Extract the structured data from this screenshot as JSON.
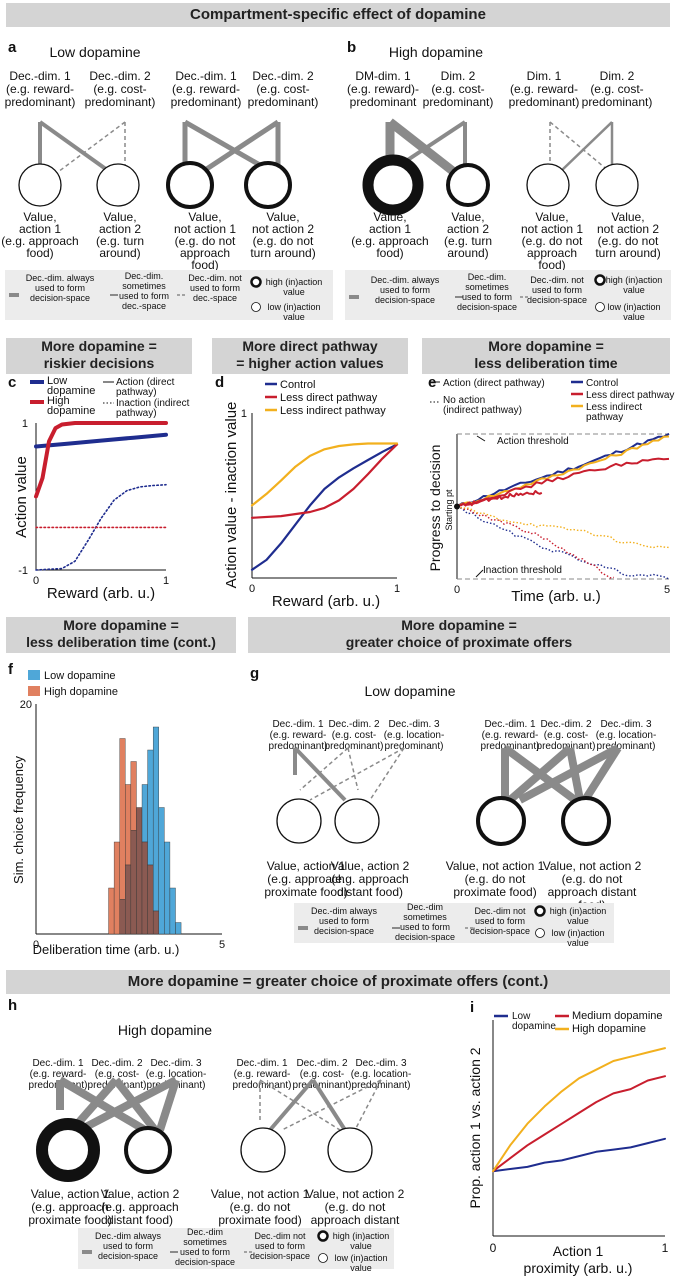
{
  "header": {
    "title": "Compartment-specific effect of dopamine",
    "cont_title": "More dopamine = greater choice of proximate offers (cont.)"
  },
  "sections": {
    "c1": "More dopamine =",
    "c2": "riskier decisions",
    "d1": "More direct pathway",
    "d2": "= higher action values",
    "e1": "More dopamine =",
    "e2": "less deliberation time",
    "f1": "More dopamine =",
    "f2": "less deliberation time (cont.)",
    "g1": "More dopamine =",
    "g2": "greater choice of proximate offers"
  },
  "labels": {
    "a": "a",
    "b": "b",
    "c": "c",
    "d": "d",
    "e": "e",
    "f": "f",
    "g": "g",
    "h": "h",
    "i": "i"
  },
  "panel_a": {
    "title": "Low dopamine",
    "dims": [
      [
        "Dec.-dim. 1",
        "(e.g. reward-",
        "predominant)"
      ],
      [
        "Dec.-dim. 2",
        "(e.g. cost-",
        "predominant)"
      ],
      [
        "Dec.-dim. 1",
        "(e.g. reward-",
        "predominant)"
      ],
      [
        "Dec.-dim. 2",
        "(e.g. cost-",
        "predominant)"
      ]
    ],
    "values": [
      [
        "Value,",
        "action 1",
        "(e.g. approach",
        "food)"
      ],
      [
        "Value,",
        "action 2",
        "(e.g. turn",
        "around)"
      ],
      [
        "Value,",
        "not action 1",
        "(e.g. do not",
        "approach",
        "food)"
      ],
      [
        "Value,",
        "not action 2",
        "(e.g. do not",
        "turn around)"
      ]
    ],
    "legend": {
      "always": [
        "Dec.-dim. always",
        "used to form",
        "decision-space"
      ],
      "sometimes": [
        "Dec.-dim.",
        "sometimes",
        "used to form",
        "dec.-space"
      ],
      "not": [
        "Dec.-dim. not",
        "used to form",
        "dec.-space"
      ],
      "high": [
        "high (in)action",
        "value"
      ],
      "low": [
        "low (in)action",
        "value"
      ]
    }
  },
  "panel_b": {
    "title": "High dopamine",
    "dims": [
      [
        "DM-dim. 1",
        "(e.g. reward)-",
        "predominant"
      ],
      [
        "Dim. 2",
        "(e.g. cost-",
        "predominant)"
      ],
      [
        "Dim. 1",
        "(e.g. reward-",
        "predominant)"
      ],
      [
        "Dim. 2",
        "(e.g. cost-",
        "predominant)"
      ]
    ],
    "values": [
      [
        "Value,",
        "action 1",
        "(e.g. approach",
        "food)"
      ],
      [
        "Value,",
        "action 2",
        "(e.g. turn",
        "around)"
      ],
      [
        "Value,",
        "not action 1",
        "(e.g. do not",
        "approach",
        "food)"
      ],
      [
        "Value,",
        "not action 2",
        "(e.g. do not",
        "turn around)"
      ]
    ],
    "legend": {
      "always": [
        "Dec.-dim. always",
        "used to form",
        "decision-space"
      ],
      "sometimes": [
        "Dec.-dim.",
        "sometimes",
        "used to form",
        "decision-space"
      ],
      "not": [
        "Dec.-dim. not",
        "used to form",
        "decision-space"
      ],
      "high": [
        "high (in)action",
        "value"
      ],
      "low": [
        "low (in)action",
        "value"
      ]
    }
  },
  "panel_g": {
    "title": "Low dopamine",
    "dims": [
      [
        "Dec.-dim. 1",
        "(e.g. reward-",
        "predominant)"
      ],
      [
        "Dec.-dim. 2",
        "(e.g. cost-",
        "predominant)"
      ],
      [
        "Dec.-dim. 3",
        "(e.g. location-",
        "predominant)"
      ],
      [
        "Dec.-dim. 1",
        "(e.g. reward-",
        "predominant)"
      ],
      [
        "Dec.-dim. 2",
        "(e.g. cost-",
        "predominant)"
      ],
      [
        "Dec.-dim. 3",
        "(e.g. location-",
        "predominant)"
      ]
    ],
    "values": [
      [
        "Value, action 1",
        "(e.g. approach",
        "proximate food)"
      ],
      [
        "Value, action 2",
        "(e.g. approach",
        "distant food)"
      ],
      [
        "Value, not action 1",
        "(e.g. do not",
        "proximate food)"
      ],
      [
        "Value, not action 2",
        "(e.g. do not",
        "approach distant",
        "food)"
      ]
    ],
    "legend": {
      "always": [
        "Dec.-dim always",
        "used to form",
        "decision-space"
      ],
      "sometimes": [
        "Dec.-dim",
        "sometimes",
        "used to form",
        "decision-space"
      ],
      "not": [
        "Dec.-dim not",
        "used to form",
        "decision-space"
      ],
      "high": [
        "high (in)action",
        "value"
      ],
      "low": [
        "low (in)action",
        "value"
      ]
    }
  },
  "panel_h": {
    "title": "High dopamine",
    "dims": [
      [
        "Dec.-dim. 1",
        "(e.g. reward-",
        "predominant)"
      ],
      [
        "Dec.-dim. 2",
        "(e.g. cost-",
        "predominant)"
      ],
      [
        "Dec.-dim. 3",
        "(e.g. location-",
        "predominant)"
      ],
      [
        "Dec.-dim. 1",
        "(e.g. reward-",
        "predominant)"
      ],
      [
        "Dec.-dim. 2",
        "(e.g. cost-",
        "predominant)"
      ],
      [
        "Dec.-dim. 3",
        "(e.g. location-",
        "predominant)"
      ]
    ],
    "values": [
      [
        "Value, action 1",
        "(e.g. approach",
        "proximate food)"
      ],
      [
        "Value, action 2",
        "(e.g. approach",
        "distant food)"
      ],
      [
        "Value, not action 1",
        "(e.g. do not",
        "proximate food)"
      ],
      [
        "Value, not action 2",
        "(e.g. do not",
        "approach distant",
        "food)"
      ]
    ],
    "legend": {
      "always": [
        "Dec.-dim always",
        "used to form",
        "decision-space"
      ],
      "sometimes": [
        "Dec.-dim",
        "sometimes",
        "used to form",
        "decision-space"
      ],
      "not": [
        "Dec.-dim not",
        "used to form",
        "decision-space"
      ],
      "high": [
        "high (in)action",
        "value"
      ],
      "low": [
        "low (in)action",
        "value"
      ]
    }
  },
  "colors": {
    "blue": "#1f2d8f",
    "red": "#c81e2e",
    "yellow": "#f2b01e",
    "gray": "#8a8a8a",
    "legend_bg": "#ececec",
    "hist_blue": "#4fa7d8",
    "hist_red": "#e08060",
    "hist_overlap": "#8b5a52"
  },
  "chart_data": [
    {
      "id": "c",
      "type": "line",
      "xlabel": "Reward (arb. u.)",
      "ylabel": "Action value",
      "xlim": [
        0,
        1
      ],
      "ylim": [
        -1,
        1
      ],
      "xticks": [
        "0",
        "1"
      ],
      "yticks": [
        "1",
        "-1"
      ],
      "legend": [
        {
          "name": "Low dopamine",
          "label": [
            "Low",
            "dopamine"
          ],
          "color": "#1f2d8f"
        },
        {
          "name": "High dopamine",
          "label": [
            "High",
            "dopamine"
          ],
          "color": "#c81e2e"
        },
        {
          "name": "Action (direct pathway)",
          "label": [
            "Action (direct",
            "pathway)"
          ],
          "style": "solid"
        },
        {
          "name": "Inaction (indirect pathway)",
          "label": [
            "Inaction (indirect",
            "pathway)"
          ],
          "style": "dotted"
        }
      ],
      "series": [
        {
          "name": "Low dopamine action",
          "style": "solid",
          "color": "#1f2d8f",
          "x": [
            0,
            0.25,
            0.5,
            0.75,
            1
          ],
          "y": [
            0.68,
            0.72,
            0.76,
            0.8,
            0.84
          ]
        },
        {
          "name": "High dopamine action",
          "style": "solid",
          "color": "#c81e2e",
          "x": [
            0,
            0.05,
            0.1,
            0.15,
            0.2,
            0.3,
            0.5,
            1
          ],
          "y": [
            0.0,
            0.25,
            0.75,
            0.93,
            0.98,
            1.0,
            1.0,
            1.0
          ]
        },
        {
          "name": "Low dopamine inaction",
          "style": "dotted",
          "color": "#1f2d8f",
          "x": [
            0,
            0.2,
            0.3,
            0.4,
            0.5,
            0.6,
            0.7,
            0.8,
            0.9,
            1
          ],
          "y": [
            -1.0,
            -0.98,
            -0.88,
            -0.6,
            -0.3,
            -0.05,
            0.08,
            0.13,
            0.15,
            0.16
          ]
        },
        {
          "name": "High dopamine inaction",
          "style": "dotted",
          "color": "#c81e2e",
          "x": [
            0,
            1
          ],
          "y": [
            -0.42,
            -0.42
          ]
        }
      ]
    },
    {
      "id": "d",
      "type": "line",
      "xlabel": "Reward (arb. u.)",
      "ylabel": "Action value - inaction value",
      "xlim": [
        0,
        1
      ],
      "ylim": [
        -1,
        1
      ],
      "xticks": [
        "0",
        "1"
      ],
      "yticks": [
        "1"
      ],
      "legend": [
        {
          "name": "Control",
          "color": "#1f2d8f"
        },
        {
          "name": "Less direct pathway",
          "color": "#c81e2e"
        },
        {
          "name": "Less indirect pathway",
          "color": "#f2b01e"
        }
      ],
      "series": [
        {
          "name": "Control",
          "color": "#1f2d8f",
          "x": [
            0,
            0.1,
            0.2,
            0.3,
            0.4,
            0.5,
            0.6,
            0.7,
            0.8,
            0.9,
            1
          ],
          "y": [
            -0.9,
            -0.78,
            -0.58,
            -0.35,
            -0.12,
            0.08,
            0.22,
            0.33,
            0.43,
            0.53,
            0.62
          ]
        },
        {
          "name": "Less direct pathway",
          "color": "#c81e2e",
          "x": [
            0,
            0.2,
            0.4,
            0.5,
            0.6,
            0.7,
            0.8,
            0.9,
            1
          ],
          "y": [
            -0.27,
            -0.25,
            -0.2,
            -0.15,
            -0.06,
            0.08,
            0.26,
            0.45,
            0.62
          ]
        },
        {
          "name": "Less indirect pathway",
          "color": "#f2b01e",
          "x": [
            0,
            0.1,
            0.2,
            0.3,
            0.4,
            0.5,
            0.6,
            0.7,
            0.8,
            0.9,
            1
          ],
          "y": [
            -0.12,
            0.02,
            0.18,
            0.35,
            0.48,
            0.56,
            0.6,
            0.62,
            0.63,
            0.63,
            0.63
          ]
        }
      ]
    },
    {
      "id": "e",
      "type": "line",
      "xlabel": "Time (arb. u.)",
      "ylabel": "Progress to decision",
      "xlim": [
        0,
        5
      ],
      "ylim": [
        -1,
        1
      ],
      "xticks": [
        "0",
        "5"
      ],
      "annotations": [
        "Action threshold",
        "Inaction threshold",
        "Starting pt"
      ],
      "legend": [
        {
          "name": "Action (direct pathway)",
          "label": [
            "Action (direct pathway)"
          ],
          "style": "solid"
        },
        {
          "name": "No action (indirect pathway)",
          "label": [
            "No action",
            "(indirect pathway)"
          ],
          "style": "dotted"
        },
        {
          "name": "Control",
          "label": [
            "Control"
          ],
          "color": "#1f2d8f"
        },
        {
          "name": "Less direct pathway",
          "label": [
            "Less direct pathway"
          ],
          "color": "#c81e2e"
        },
        {
          "name": "Less indirect pathway",
          "label": [
            "Less indirect",
            "pathway"
          ],
          "color": "#f2b01e"
        }
      ],
      "series": [
        {
          "name": "Control action",
          "color": "#1f2d8f",
          "style": "solid",
          "x": [
            0,
            1,
            2,
            3,
            4,
            4.4,
            5
          ],
          "y": [
            0,
            0.21,
            0.4,
            0.58,
            0.8,
            0.88,
            0.99
          ]
        },
        {
          "name": "Less indirect action",
          "color": "#f2b01e",
          "style": "solid",
          "x": [
            0,
            1,
            2,
            3,
            4,
            4.4,
            5
          ],
          "y": [
            0,
            0.18,
            0.37,
            0.56,
            0.76,
            0.86,
            0.96
          ]
        },
        {
          "name": "Less direct action",
          "color": "#c81e2e",
          "style": "solid",
          "x": [
            0,
            1,
            2,
            3,
            4,
            5
          ],
          "y": [
            0,
            0.16,
            0.33,
            0.47,
            0.6,
            0.66
          ]
        },
        {
          "name": "Less direct action short",
          "color": "#c81e2e",
          "style": "solid",
          "x": [
            0,
            0.5,
            1,
            1.5,
            2
          ],
          "y": [
            0,
            0.06,
            0.12,
            0.18,
            0.2
          ]
        },
        {
          "name": "Control no-action",
          "color": "#1f2d8f",
          "style": "dotted",
          "x": [
            0,
            1,
            2,
            3,
            4,
            5
          ],
          "y": [
            0,
            -0.3,
            -0.55,
            -0.75,
            -0.93,
            -0.98
          ]
        },
        {
          "name": "Less direct no-action",
          "color": "#c81e2e",
          "style": "dotted",
          "x": [
            0,
            1,
            2,
            3,
            3.7
          ],
          "y": [
            0,
            -0.2,
            -0.42,
            -0.75,
            -1.0
          ]
        },
        {
          "name": "Less indirect no-action",
          "color": "#f2b01e",
          "style": "dotted",
          "x": [
            0,
            1,
            2,
            3,
            4,
            5
          ],
          "y": [
            0,
            -0.17,
            -0.27,
            -0.34,
            -0.5,
            -0.58
          ]
        }
      ]
    },
    {
      "id": "f",
      "type": "bar",
      "subtype": "histogram",
      "xlabel": "Deliberation time (arb. u.)",
      "ylabel": "Sim. choice frequency",
      "xlim": [
        0,
        5
      ],
      "ylim": [
        0,
        20
      ],
      "xticks": [
        "0",
        "5"
      ],
      "yticks": [
        "20"
      ],
      "bin_starts": [
        1.95,
        2.1,
        2.25,
        2.4,
        2.55,
        2.7,
        2.85,
        3.0,
        3.15,
        3.3,
        3.45,
        3.6,
        3.75
      ],
      "bin_width": 0.15,
      "series": [
        {
          "name": "Low dopamine",
          "color": "#4fa7d8",
          "values": [
            0,
            0,
            3,
            6,
            9,
            11,
            13,
            16,
            18,
            11,
            8,
            4,
            1
          ]
        },
        {
          "name": "High dopamine",
          "color": "#e08060",
          "values": [
            4,
            8,
            17,
            13,
            15,
            11,
            8,
            6,
            2,
            0,
            0,
            0,
            0
          ]
        }
      ]
    },
    {
      "id": "i",
      "type": "line",
      "xlabel": "Action 1 proximity (arb. u.)",
      "ylabel": "Prop. action 1 vs. action 2",
      "xlim": [
        0,
        1
      ],
      "xticks": [
        "0",
        "1"
      ],
      "legend": [
        {
          "name": "Low dopamine",
          "label": [
            "Low",
            "dopamine"
          ],
          "color": "#1f2d8f"
        },
        {
          "name": "Medium dopamine",
          "label": [
            "Medium dopamine"
          ],
          "color": "#c81e2e"
        },
        {
          "name": "High dopamine",
          "label": [
            "High dopamine"
          ],
          "color": "#f2b01e"
        }
      ],
      "series": [
        {
          "name": "Low dopamine",
          "color": "#1f2d8f",
          "x": [
            0,
            0.1,
            0.2,
            0.3,
            0.4,
            0.5,
            0.6,
            0.7,
            0.8,
            0.9,
            1
          ],
          "y": [
            0.3,
            0.31,
            0.32,
            0.34,
            0.35,
            0.37,
            0.39,
            0.4,
            0.41,
            0.43,
            0.45
          ]
        },
        {
          "name": "Medium dopamine",
          "color": "#c81e2e",
          "x": [
            0,
            0.1,
            0.2,
            0.3,
            0.4,
            0.5,
            0.6,
            0.7,
            0.8,
            0.9,
            1
          ],
          "y": [
            0.3,
            0.36,
            0.42,
            0.47,
            0.52,
            0.57,
            0.62,
            0.66,
            0.68,
            0.72,
            0.74
          ]
        },
        {
          "name": "High dopamine",
          "color": "#f2b01e",
          "x": [
            0,
            0.1,
            0.2,
            0.3,
            0.4,
            0.5,
            0.6,
            0.7,
            0.8,
            0.9,
            1
          ],
          "y": [
            0.3,
            0.42,
            0.52,
            0.6,
            0.67,
            0.73,
            0.77,
            0.81,
            0.83,
            0.85,
            0.87
          ]
        }
      ]
    }
  ]
}
